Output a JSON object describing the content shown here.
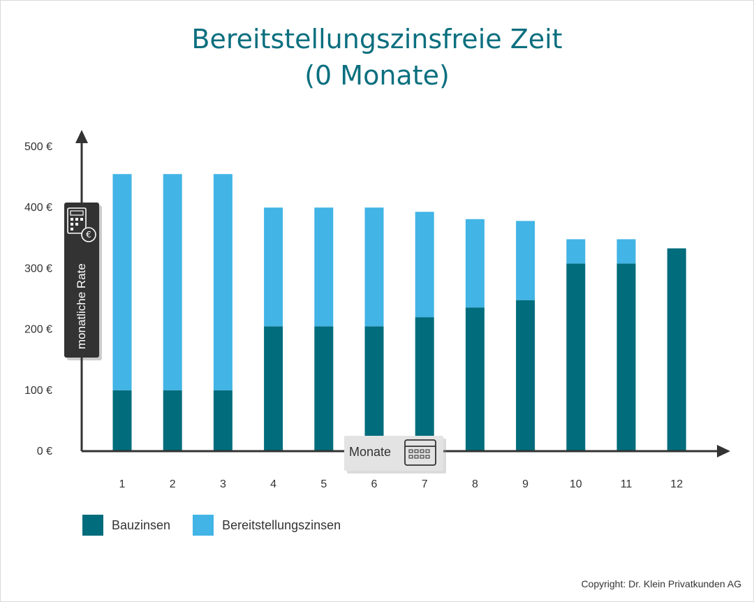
{
  "title": {
    "line1": "Bereitstellungszinsfreie Zeit",
    "line2": "(0 Monate)"
  },
  "colors": {
    "title": "#0b6f7f",
    "bauzinsen": "#006c7c",
    "bereitstellungszinsen": "#42b4e6",
    "axis": "#333333",
    "badge_dark": "#333333",
    "badge_light": "#e3e3e3"
  },
  "y_axis_badge": {
    "label": "monatliche Rate",
    "icon": "calculator-euro-icon"
  },
  "x_axis_badge": {
    "label": "Monate",
    "icon": "calendar-icon"
  },
  "legend": {
    "bauzinsen": "Bauzinsen",
    "bereitstellungszinsen": "Bereitstellungszinsen"
  },
  "copyright": "Copyright: Dr. Klein Privatkunden AG",
  "chart_data": {
    "type": "bar",
    "stacked": true,
    "categories": [
      "1",
      "2",
      "3",
      "4",
      "5",
      "6",
      "7",
      "8",
      "9",
      "10",
      "11",
      "12"
    ],
    "series": [
      {
        "name": "Bauzinsen",
        "values": [
          100,
          100,
          100,
          205,
          205,
          205,
          220,
          236,
          248,
          308,
          308,
          333
        ]
      },
      {
        "name": "Bereitstellungszinsen",
        "values": [
          355,
          355,
          355,
          195,
          195,
          195,
          173,
          145,
          130,
          40,
          40,
          0
        ]
      }
    ],
    "y_ticks": [
      "0 €",
      "100 €",
      "200 €",
      "300 €",
      "400 €",
      "500 €"
    ],
    "ylim": [
      0,
      500
    ],
    "ylabel": "monatliche Rate",
    "xlabel": "Monate",
    "grid": false,
    "legend_position": "bottom-left"
  }
}
